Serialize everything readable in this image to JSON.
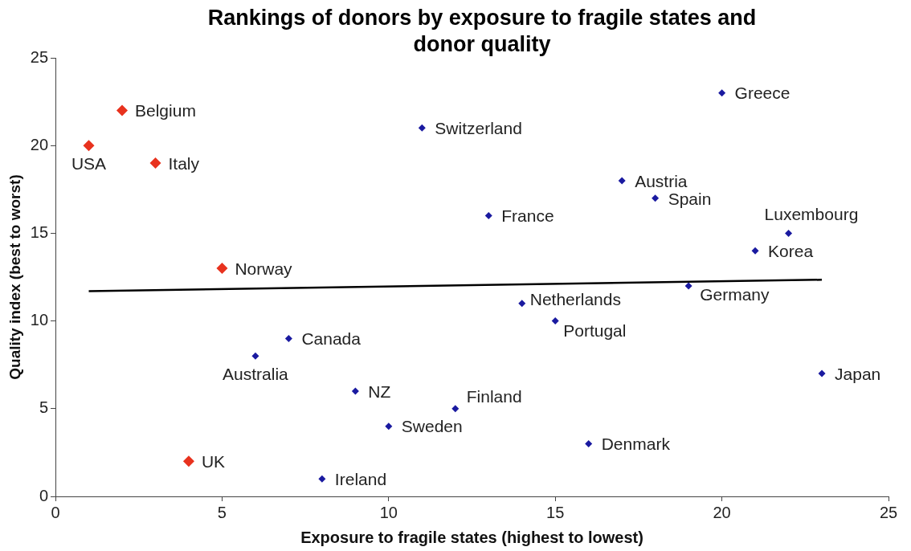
{
  "chart_data": {
    "type": "scatter",
    "title": "Rankings of donors by exposure to fragile states and donor quality",
    "xlabel": "Exposure to fragile states (highest to lowest)",
    "ylabel": "Quality index (best to worst)",
    "series": [
      {
        "marker": "diamond",
        "color": "#e8321e",
        "x": [
          1,
          2,
          3,
          5,
          4
        ],
        "values": [
          20,
          22,
          19,
          13,
          2
        ]
      },
      {
        "marker": "diamond",
        "color": "#1a1aa0",
        "x": [
          20,
          11,
          17,
          18,
          13,
          22,
          21,
          19,
          14,
          15,
          7,
          6,
          23,
          9,
          12,
          10,
          16,
          8
        ],
        "values": [
          23,
          21,
          18,
          17,
          16,
          15,
          14,
          12,
          11,
          10,
          9,
          8,
          7,
          6,
          5,
          4,
          3,
          1
        ]
      },
      {
        "type": "line",
        "marker": "none",
        "color": "#000000",
        "x": [
          1,
          23
        ],
        "values": [
          11.7,
          12.35
        ]
      }
    ],
    "annotations": [
      {
        "text": "USA",
        "x": 1,
        "y": 20
      },
      {
        "text": "Belgium",
        "x": 2,
        "y": 22
      },
      {
        "text": "Italy",
        "x": 3,
        "y": 19
      },
      {
        "text": "Norway",
        "x": 5,
        "y": 13
      },
      {
        "text": "UK",
        "x": 4,
        "y": 2
      },
      {
        "text": "Greece",
        "x": 20,
        "y": 23
      },
      {
        "text": "Switzerland",
        "x": 11,
        "y": 21
      },
      {
        "text": "Austria",
        "x": 17,
        "y": 18
      },
      {
        "text": "Spain",
        "x": 18,
        "y": 17
      },
      {
        "text": "France",
        "x": 13,
        "y": 16
      },
      {
        "text": "Luxembourg",
        "x": 22,
        "y": 15
      },
      {
        "text": "Korea",
        "x": 21,
        "y": 14
      },
      {
        "text": "Germany",
        "x": 19,
        "y": 12
      },
      {
        "text": "Netherlands",
        "x": 14,
        "y": 11
      },
      {
        "text": "Portugal",
        "x": 15,
        "y": 10
      },
      {
        "text": "Canada",
        "x": 7,
        "y": 9
      },
      {
        "text": "Australia",
        "x": 6,
        "y": 8
      },
      {
        "text": "Japan",
        "x": 23,
        "y": 7
      },
      {
        "text": "NZ",
        "x": 9,
        "y": 6
      },
      {
        "text": "Finland",
        "x": 12,
        "y": 5
      },
      {
        "text": "Sweden",
        "x": 10,
        "y": 4
      },
      {
        "text": "Denmark",
        "x": 16,
        "y": 3
      },
      {
        "text": "Ireland",
        "x": 8,
        "y": 1
      }
    ],
    "xlim": [
      0,
      25
    ],
    "ylim": [
      0,
      25
    ],
    "xticks": [
      0,
      5,
      10,
      15,
      20,
      25
    ],
    "yticks": [
      0,
      5,
      10,
      15,
      20,
      25
    ],
    "grid": false,
    "legend": false
  }
}
